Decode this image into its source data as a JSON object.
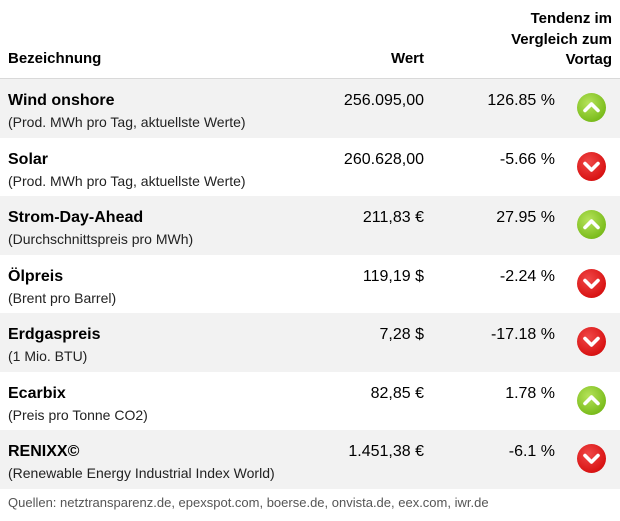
{
  "header": {
    "name": "Bezeichnung",
    "value": "Wert",
    "trend_line1": "Tendenz im",
    "trend_line2": "Vergleich zum",
    "trend_line3": "Vortag"
  },
  "rows": [
    {
      "name": "Wind onshore",
      "desc": "(Prod. MWh pro Tag, aktuellste Werte)",
      "value": "256.095,00",
      "trend": "126.85 %",
      "direction": "up"
    },
    {
      "name": "Solar",
      "desc": "(Prod. MWh pro Tag, aktuellste Werte)",
      "value": "260.628,00",
      "trend": "-5.66 %",
      "direction": "down"
    },
    {
      "name": "Strom-Day-Ahead",
      "desc": "(Durchschnittspreis pro MWh)",
      "value": "211,83 €",
      "trend": "27.95 %",
      "direction": "up"
    },
    {
      "name": "Ölpreis",
      "desc": "(Brent pro Barrel)",
      "value": "119,19 $",
      "trend": "-2.24 %",
      "direction": "down"
    },
    {
      "name": "Erdgaspreis",
      "desc": "(1 Mio. BTU)",
      "value": "7,28 $",
      "trend": "-17.18 %",
      "direction": "down"
    },
    {
      "name": "Ecarbix",
      "desc": "(Preis pro Tonne CO2)",
      "value": "82,85 €",
      "trend": "1.78 %",
      "direction": "up"
    },
    {
      "name": "RENIXX©",
      "desc": "(Renewable Energy Industrial Index World)",
      "value": "1.451,38 €",
      "trend": "-6.1 %",
      "direction": "down"
    }
  ],
  "footer": {
    "sources": "Quellen: netztransparenz.de, epexspot.com, boerse.de, onvista.de, eex.com, iwr.de"
  },
  "colors": {
    "up": "#7cbd1e",
    "down": "#d91414",
    "row_stripe": "#f2f2f2"
  },
  "icons": {
    "up": "chevron-up-icon",
    "down": "chevron-down-icon"
  }
}
